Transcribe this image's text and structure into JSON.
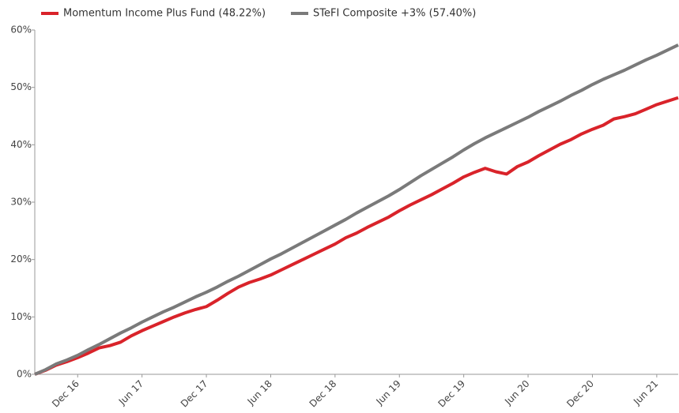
{
  "chart_data": {
    "type": "line",
    "categories": [
      null,
      null,
      null,
      null,
      "Dec 16",
      null,
      null,
      null,
      null,
      null,
      "Jun 17",
      null,
      null,
      null,
      null,
      null,
      "Dec 17",
      null,
      null,
      null,
      null,
      null,
      "Jun 18",
      null,
      null,
      null,
      null,
      null,
      "Dec 18",
      null,
      null,
      null,
      null,
      null,
      "Jun 19",
      null,
      null,
      null,
      null,
      null,
      "Dec 19",
      null,
      null,
      null,
      null,
      null,
      "Jun 20",
      null,
      null,
      null,
      null,
      null,
      "Dec 20",
      null,
      null,
      null,
      null,
      null,
      "Jun 21",
      null,
      null
    ],
    "series": [
      {
        "name": "Momentum Income Plus Fund (48.22%)",
        "color": "#d9232a",
        "values": [
          0,
          0.7,
          1.6,
          2.2,
          2.9,
          3.7,
          4.6,
          5.0,
          5.6,
          6.7,
          7.6,
          8.4,
          9.2,
          10.0,
          10.7,
          11.3,
          11.8,
          12.9,
          14.1,
          15.2,
          16.0,
          16.6,
          17.3,
          18.2,
          19.1,
          20.0,
          20.9,
          21.8,
          22.7,
          23.8,
          24.6,
          25.6,
          26.5,
          27.4,
          28.5,
          29.5,
          30.4,
          31.3,
          32.3,
          33.3,
          34.4,
          35.2,
          35.9,
          35.3,
          34.9,
          36.2,
          37.0,
          38.1,
          39.1,
          40.1,
          40.9,
          41.9,
          42.7,
          43.4,
          44.5,
          44.9,
          45.4,
          46.2,
          47.0,
          47.6,
          48.2
        ]
      },
      {
        "name": "STeFI Composite +3% (57.40%)",
        "color": "#7a7a7a",
        "values": [
          0,
          0.8,
          1.8,
          2.5,
          3.3,
          4.3,
          5.2,
          6.2,
          7.2,
          8.1,
          9.1,
          10.0,
          10.9,
          11.7,
          12.6,
          13.5,
          14.3,
          15.2,
          16.2,
          17.1,
          18.1,
          19.1,
          20.1,
          21.0,
          22.0,
          23.0,
          24.0,
          25.0,
          26.0,
          27.0,
          28.1,
          29.1,
          30.1,
          31.1,
          32.2,
          33.4,
          34.6,
          35.7,
          36.8,
          37.9,
          39.1,
          40.2,
          41.2,
          42.1,
          43.0,
          43.9,
          44.8,
          45.8,
          46.7,
          47.6,
          48.6,
          49.5,
          50.5,
          51.4,
          52.2,
          53.0,
          53.9,
          54.8,
          55.6,
          56.5,
          57.4
        ]
      }
    ],
    "ylim": [
      0,
      60
    ],
    "yticks": [
      {
        "value": 0,
        "label": "0%"
      },
      {
        "value": 10,
        "label": "10%"
      },
      {
        "value": 20,
        "label": "20%"
      },
      {
        "value": 30,
        "label": "30%"
      },
      {
        "value": 40,
        "label": "40%"
      },
      {
        "value": 50,
        "label": "50%"
      },
      {
        "value": 60,
        "label": "60%"
      }
    ],
    "legend": "top-left"
  }
}
